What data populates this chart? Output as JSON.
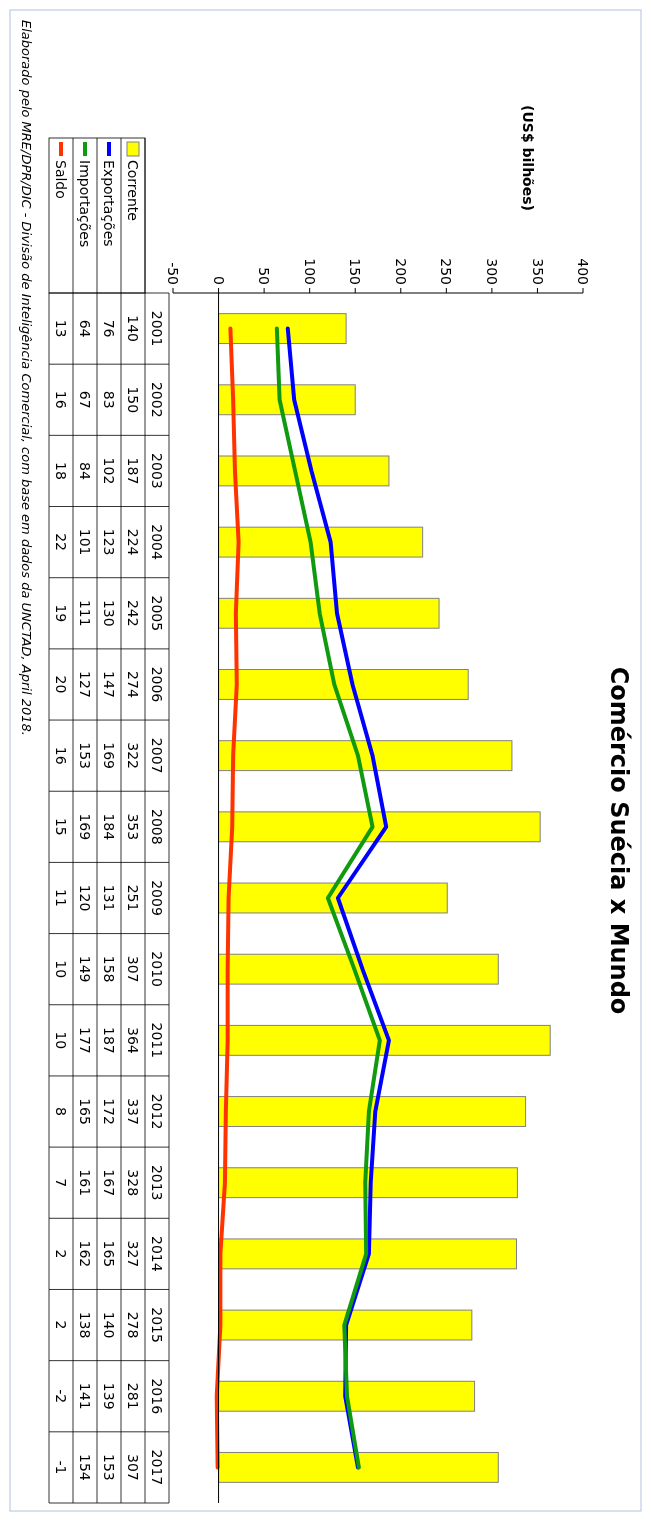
{
  "chart_data": {
    "type": "bar",
    "title": "Comércio Suécia x Mundo",
    "annotations": [
      "(US$ bilhões)",
      "Elaborado pelo MRE/DPR/DIC - Divisão de Inteligência Comercial, com base em dados da UNCTAD, April 2018."
    ],
    "categories": [
      "2001",
      "2002",
      "2003",
      "2004",
      "2005",
      "2006",
      "2007",
      "2008",
      "2009",
      "2010",
      "2011",
      "2012",
      "2013",
      "2014",
      "2015",
      "2016",
      "2017"
    ],
    "series": [
      {
        "name": "Corrente",
        "color": "#ffff00",
        "values": [
          140,
          150,
          187,
          224,
          242,
          274,
          322,
          353,
          251,
          307,
          364,
          337,
          328,
          327,
          278,
          281,
          307
        ]
      },
      {
        "name": "Exportações",
        "type": "line",
        "color": "#0000ff",
        "values": [
          76,
          83,
          102,
          123,
          130,
          147,
          169,
          184,
          131,
          158,
          187,
          172,
          167,
          165,
          140,
          139,
          153
        ]
      },
      {
        "name": "Importações",
        "type": "line",
        "color": "#0f9a0f",
        "values": [
          64,
          67,
          84,
          101,
          111,
          127,
          153,
          169,
          120,
          149,
          177,
          165,
          161,
          162,
          138,
          141,
          154
        ]
      },
      {
        "name": "Saldo",
        "type": "line",
        "color": "#ff3300",
        "values": [
          13,
          16,
          18,
          22,
          19,
          20,
          16,
          15,
          11,
          10,
          10,
          8,
          7,
          2,
          2,
          -2,
          -1
        ]
      }
    ],
    "orientation": "horizontal",
    "xlim": [
      -50,
      400
    ],
    "xticks": [
      -50,
      0,
      50,
      100,
      150,
      200,
      250,
      300,
      350,
      400
    ],
    "ref_lines": [
      {
        "axis": "x",
        "value": 0,
        "color": "#000000"
      }
    ],
    "data_labels": true,
    "legend": "left",
    "grid": false
  }
}
